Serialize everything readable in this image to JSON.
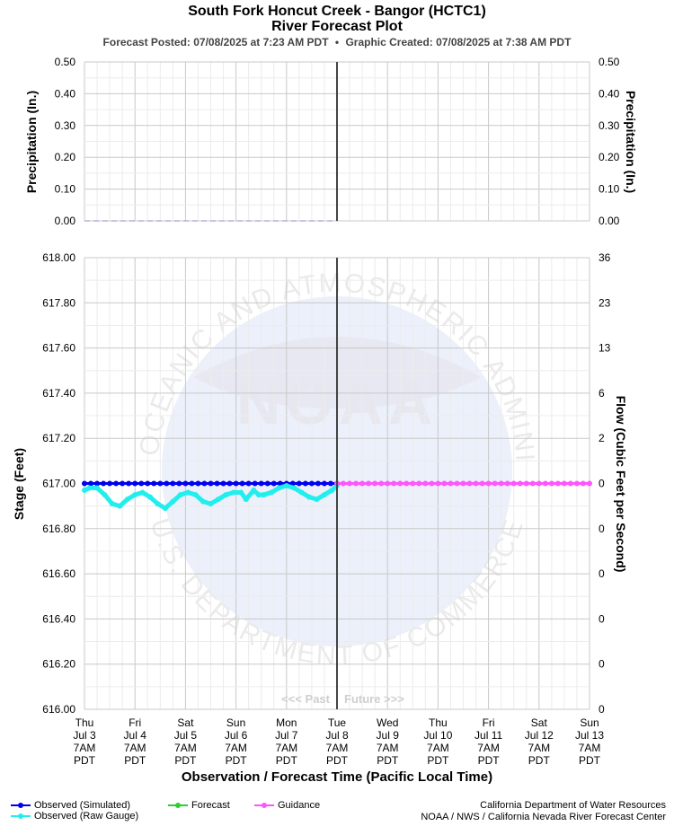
{
  "header": {
    "title": "South Fork Honcut Creek - Bangor (HCTC1)",
    "subtitle": "River Forecast Plot",
    "posted": "Forecast Posted: 07/08/2025 at 7:23 AM PDT",
    "created": "Graphic Created: 07/08/2025 at 7:38 AM PDT",
    "separator": "•"
  },
  "watermark": {
    "logo_text": "NOAA",
    "ring_top": "NATIONAL OCEANIC AND ATMOSPHERIC ADMINISTRATION",
    "ring_bottom": "U.S. DEPARTMENT OF COMMERCE"
  },
  "chart_data": [
    {
      "type": "line",
      "panel": "precipitation",
      "ylabel_left": "Precipitation (In.)",
      "ylabel_right": "Precipitation (In.)",
      "ylim": [
        0,
        0.5
      ],
      "yticks": [
        "0.50",
        "0.40",
        "0.30",
        "0.20",
        "0.10",
        "0.00"
      ],
      "series": [
        {
          "name": "",
          "color": "#b0b0e0",
          "dash": true,
          "x": [
            "2025-07-03 07:00",
            "2025-07-08 07:00"
          ],
          "y": [
            0,
            0
          ]
        }
      ]
    },
    {
      "type": "line",
      "panel": "stage",
      "ylabel_left": "Stage (Feet)",
      "ylabel_right": "Flow (Cubic Feet per Second)",
      "xlabel": "Observation / Forecast Time (Pacific Local Time)",
      "ylim": [
        616.0,
        618.0
      ],
      "yticks_left": [
        "618.00",
        "617.80",
        "617.60",
        "617.40",
        "617.20",
        "617.00",
        "616.80",
        "616.60",
        "616.40",
        "616.20",
        "616.00"
      ],
      "yticks_right": [
        "36",
        "23",
        "13",
        "6",
        "2",
        "0",
        "0",
        "0",
        "0",
        "0",
        "0"
      ],
      "x_ticks": [
        {
          "day": "Thu",
          "date": "Jul 3",
          "time": "7AM",
          "tz": "PDT"
        },
        {
          "day": "Fri",
          "date": "Jul 4",
          "time": "7AM",
          "tz": "PDT"
        },
        {
          "day": "Sat",
          "date": "Jul 5",
          "time": "7AM",
          "tz": "PDT"
        },
        {
          "day": "Sun",
          "date": "Jul 6",
          "time": "7AM",
          "tz": "PDT"
        },
        {
          "day": "Mon",
          "date": "Jul 7",
          "time": "7AM",
          "tz": "PDT"
        },
        {
          "day": "Tue",
          "date": "Jul 8",
          "time": "7AM",
          "tz": "PDT"
        },
        {
          "day": "Wed",
          "date": "Jul 9",
          "time": "7AM",
          "tz": "PDT"
        },
        {
          "day": "Thu",
          "date": "Jul 10",
          "time": "7AM",
          "tz": "PDT"
        },
        {
          "day": "Fri",
          "date": "Jul 11",
          "time": "7AM",
          "tz": "PDT"
        },
        {
          "day": "Sat",
          "date": "Jul 12",
          "time": "7AM",
          "tz": "PDT"
        },
        {
          "day": "Sun",
          "date": "Jul 13",
          "time": "7AM",
          "tz": "PDT"
        }
      ],
      "now": "Tue Jul 8 7AM PDT",
      "past_label": "<<< Past",
      "future_label": "Future >>>",
      "series": [
        {
          "name": "Observed (Simulated)",
          "color": "#0000ee",
          "x_days": [
            0,
            5
          ],
          "y": [
            617.0,
            617.0
          ]
        },
        {
          "name": "Observed (Raw Gauge)",
          "color": "#22eeee",
          "x_days": [
            0.0,
            0.1,
            0.25,
            0.4,
            0.55,
            0.7,
            0.85,
            1.0,
            1.15,
            1.3,
            1.45,
            1.6,
            1.75,
            1.9,
            2.05,
            2.2,
            2.35,
            2.5,
            2.65,
            2.8,
            2.95,
            3.1,
            3.2,
            3.35,
            3.45,
            3.55,
            3.7,
            3.85,
            4.0,
            4.15,
            4.3,
            4.45,
            4.6,
            4.75,
            4.9,
            5.0
          ],
          "y": [
            616.97,
            616.98,
            616.98,
            616.95,
            616.91,
            616.9,
            616.93,
            616.95,
            616.96,
            616.94,
            616.91,
            616.89,
            616.92,
            616.95,
            616.96,
            616.95,
            616.92,
            616.91,
            616.93,
            616.95,
            616.96,
            616.96,
            616.93,
            616.97,
            616.95,
            616.95,
            616.96,
            616.98,
            616.99,
            616.98,
            616.96,
            616.94,
            616.93,
            616.95,
            616.97,
            616.99
          ]
        },
        {
          "name": "Forecast",
          "color": "#33cc33",
          "x_days": [],
          "y": []
        },
        {
          "name": "Guidance",
          "color": "#ff55ff",
          "x_days": [
            5,
            10
          ],
          "y": [
            617.0,
            617.0
          ]
        }
      ]
    }
  ],
  "legend": [
    {
      "label": "Observed (Simulated)",
      "color": "#0000ee"
    },
    {
      "label": "Observed (Raw Gauge)",
      "color": "#22eeee"
    },
    {
      "label": "Forecast",
      "color": "#33cc33"
    },
    {
      "label": "Guidance",
      "color": "#ff55ff"
    }
  ],
  "credits": {
    "line1": "California Department of Water Resources",
    "line2": "NOAA / NWS / California Nevada River Forecast Center"
  }
}
